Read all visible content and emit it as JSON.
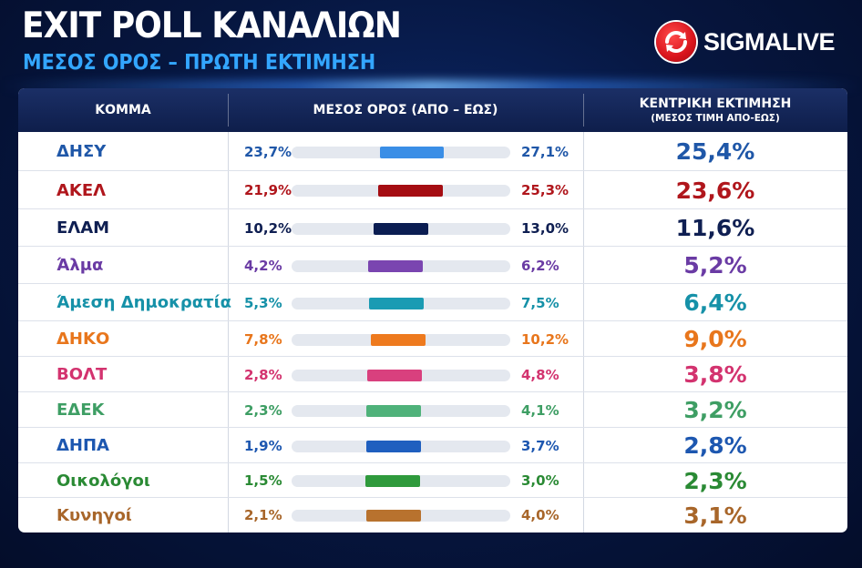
{
  "header": {
    "title": "EXIT POLL ΚΑΝΑΛΙΩΝ",
    "subtitle": "ΜΕΣΟΣ ΟΡΟΣ – ΠΡΩΤΗ ΕΚΤΙΜΗΣΗ",
    "brand": "SIGMALIVE"
  },
  "table": {
    "col_party": "ΚΟΜΜΑ",
    "col_range": "ΜΕΣΟΣ ΟΡΟΣ (ΑΠΟ – ΕΩΣ)",
    "col_center": "ΚΕΝΤΡΙΚΗ ΕΚΤΙΜΗΣΗ",
    "col_center_sub": "(ΜΕΣΟΣ ΤΙΜΗ ΑΠΟ-ΕΩΣ)"
  },
  "chart_data": {
    "type": "table",
    "unit": "%",
    "rows": [
      {
        "party": "ΔΗΣΥ",
        "low": 23.7,
        "high": 27.1,
        "center": 25.4,
        "low_label": "23,7%",
        "high_label": "27,1%",
        "center_label": "25,4%",
        "color": "#3a8ee6",
        "text_color": "#1f57a8"
      },
      {
        "party": "ΑΚΕΛ",
        "low": 21.9,
        "high": 25.3,
        "center": 23.6,
        "low_label": "21,9%",
        "high_label": "25,3%",
        "center_label": "23,6%",
        "color": "#a50d12",
        "text_color": "#b0161c"
      },
      {
        "party": "ΕΛΑΜ",
        "low": 10.2,
        "high": 13.0,
        "center": 11.6,
        "low_label": "10,2%",
        "high_label": "13,0%",
        "center_label": "11,6%",
        "color": "#0b1d52",
        "text_color": "#0f1f52"
      },
      {
        "party": "Άλμα",
        "low": 4.2,
        "high": 6.2,
        "center": 5.2,
        "low_label": "4,2%",
        "high_label": "6,2%",
        "center_label": "5,2%",
        "color": "#7a45b0",
        "text_color": "#6a3ba4"
      },
      {
        "party": "Άμεση Δημοκρατία",
        "low": 5.3,
        "high": 7.5,
        "center": 6.4,
        "low_label": "5,3%",
        "high_label": "7,5%",
        "center_label": "6,4%",
        "color": "#1a9bb3",
        "text_color": "#1691a8"
      },
      {
        "party": "ΔΗΚΟ",
        "low": 7.8,
        "high": 10.2,
        "center": 9.0,
        "low_label": "7,8%",
        "high_label": "10,2%",
        "center_label": "9,0%",
        "color": "#ee7a1e",
        "text_color": "#e8761c"
      },
      {
        "party": "ΒΟΛΤ",
        "low": 2.8,
        "high": 4.8,
        "center": 3.8,
        "low_label": "2,8%",
        "high_label": "4,8%",
        "center_label": "3,8%",
        "color": "#d9407e",
        "text_color": "#d3336f"
      },
      {
        "party": "ΕΔΕΚ",
        "low": 2.3,
        "high": 4.1,
        "center": 3.2,
        "low_label": "2,3%",
        "high_label": "4,1%",
        "center_label": "3,2%",
        "color": "#4fb27a",
        "text_color": "#3e9e64"
      },
      {
        "party": "ΔΗΠΑ",
        "low": 1.9,
        "high": 3.7,
        "center": 2.8,
        "low_label": "1,9%",
        "high_label": "3,7%",
        "center_label": "2,8%",
        "color": "#1f5fbf",
        "text_color": "#1d57b0"
      },
      {
        "party": "Οικολόγοι",
        "low": 1.5,
        "high": 3.0,
        "center": 2.3,
        "low_label": "1,5%",
        "high_label": "3,0%",
        "center_label": "2,3%",
        "color": "#2f9a3c",
        "text_color": "#2a8a34"
      },
      {
        "party": "Κυνηγοί",
        "low": 2.1,
        "high": 4.0,
        "center": 3.1,
        "low_label": "2,1%",
        "high_label": "4,0%",
        "center_label": "3,1%",
        "color": "#b8722e",
        "text_color": "#a8662a"
      }
    ]
  }
}
